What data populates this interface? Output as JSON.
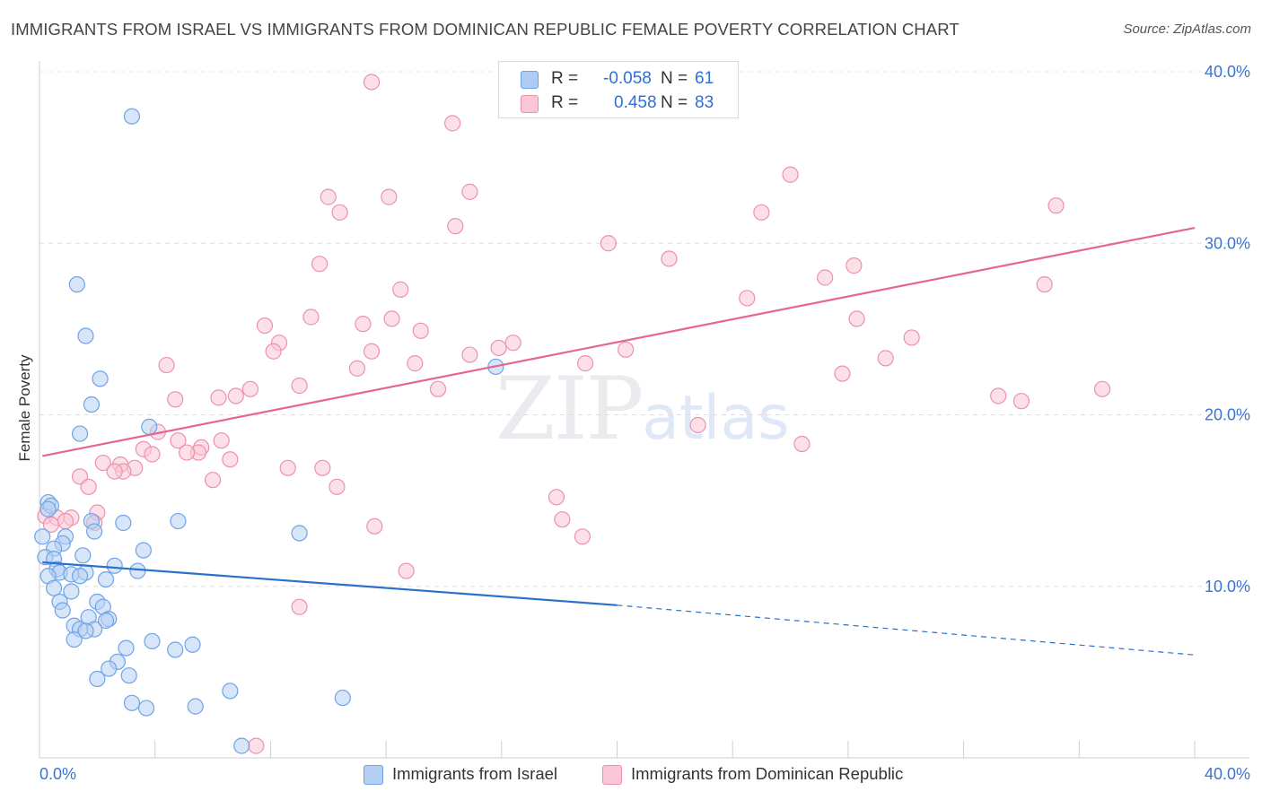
{
  "title": "IMMIGRANTS FROM ISRAEL VS IMMIGRANTS FROM DOMINICAN REPUBLIC FEMALE POVERTY CORRELATION CHART",
  "source": "Source: ZipAtlas.com",
  "watermark": {
    "zip": "ZIP",
    "atlas": "atlas"
  },
  "legend": {
    "rows": [
      {
        "r_label": "R =",
        "r_value": "-0.058",
        "n_label": "N =",
        "n_value": "61",
        "color": "#aecbf3"
      },
      {
        "r_label": "R =",
        "r_value": "0.458",
        "n_label": "N =",
        "n_value": "83",
        "color": "#f7bfd0"
      }
    ]
  },
  "bottom_legend": [
    {
      "label": "Immigrants from Israel",
      "color": "#aecbf3"
    },
    {
      "label": "Immigrants from Dominican Republic",
      "color": "#f7bfd0"
    }
  ],
  "chart_data": {
    "type": "scatter",
    "title": "IMMIGRANTS FROM ISRAEL VS IMMIGRANTS FROM DOMINICAN REPUBLIC FEMALE POVERTY CORRELATION CHART",
    "xlabel": "",
    "ylabel": "Female Poverty",
    "xlim": [
      0,
      40
    ],
    "ylim": [
      0,
      40
    ],
    "x_tick_labels": [
      "0.0%",
      "40.0%"
    ],
    "y_ticks": [
      10,
      20,
      30,
      40
    ],
    "y_tick_labels": [
      "10.0%",
      "20.0%",
      "30.0%",
      "40.0%"
    ],
    "grid": true,
    "legend_position": "top-center",
    "series": [
      {
        "name": "Immigrants from Israel",
        "color": "#6fa3e8",
        "fill": "#b4cff3",
        "line_color": "#2a70cc",
        "trend": {
          "x0": 0.1,
          "y0": 11.4,
          "x1": 20.0,
          "y1": 8.9,
          "dash_to_x": 40.0,
          "dash_to_y": 6.0
        },
        "points": [
          [
            3.2,
            37.4
          ],
          [
            1.3,
            27.6
          ],
          [
            1.6,
            24.6
          ],
          [
            2.1,
            22.1
          ],
          [
            1.8,
            20.6
          ],
          [
            1.4,
            18.9
          ],
          [
            3.8,
            19.3
          ],
          [
            15.8,
            22.8
          ],
          [
            0.3,
            14.9
          ],
          [
            0.4,
            14.7
          ],
          [
            0.3,
            14.5
          ],
          [
            1.8,
            13.8
          ],
          [
            2.9,
            13.7
          ],
          [
            4.8,
            13.8
          ],
          [
            9.0,
            13.1
          ],
          [
            1.9,
            13.2
          ],
          [
            0.1,
            12.9
          ],
          [
            0.9,
            12.9
          ],
          [
            0.8,
            12.5
          ],
          [
            0.5,
            12.2
          ],
          [
            1.5,
            11.8
          ],
          [
            3.6,
            12.1
          ],
          [
            0.2,
            11.7
          ],
          [
            0.5,
            11.6
          ],
          [
            2.6,
            11.2
          ],
          [
            0.6,
            11.0
          ],
          [
            0.7,
            10.8
          ],
          [
            1.1,
            10.7
          ],
          [
            1.6,
            10.8
          ],
          [
            3.4,
            10.9
          ],
          [
            1.4,
            10.6
          ],
          [
            0.3,
            10.6
          ],
          [
            2.3,
            10.4
          ],
          [
            0.5,
            9.9
          ],
          [
            1.1,
            9.7
          ],
          [
            0.7,
            9.1
          ],
          [
            2.0,
            9.1
          ],
          [
            2.2,
            8.8
          ],
          [
            0.8,
            8.6
          ],
          [
            1.7,
            8.2
          ],
          [
            2.4,
            8.1
          ],
          [
            2.3,
            8.0
          ],
          [
            1.2,
            7.7
          ],
          [
            1.9,
            7.5
          ],
          [
            1.4,
            7.5
          ],
          [
            1.6,
            7.4
          ],
          [
            1.2,
            6.9
          ],
          [
            3.9,
            6.8
          ],
          [
            5.3,
            6.6
          ],
          [
            3.0,
            6.4
          ],
          [
            4.7,
            6.3
          ],
          [
            2.7,
            5.6
          ],
          [
            2.4,
            5.2
          ],
          [
            3.1,
            4.8
          ],
          [
            2.0,
            4.6
          ],
          [
            6.6,
            3.9
          ],
          [
            10.5,
            3.5
          ],
          [
            3.2,
            3.2
          ],
          [
            3.7,
            2.9
          ],
          [
            5.4,
            3.0
          ],
          [
            7.0,
            0.7
          ]
        ]
      },
      {
        "name": "Immigrants from Dominican Republic",
        "color": "#ee90ad",
        "fill": "#f9c6d5",
        "line_color": "#e5668f",
        "trend": {
          "x0": 0.1,
          "y0": 17.6,
          "x1": 40.0,
          "y1": 30.9
        },
        "points": [
          [
            14.3,
            37.0
          ],
          [
            11.5,
            39.4
          ],
          [
            26.0,
            34.0
          ],
          [
            10.0,
            32.7
          ],
          [
            12.1,
            32.7
          ],
          [
            14.9,
            33.0
          ],
          [
            10.4,
            31.8
          ],
          [
            25.0,
            31.8
          ],
          [
            35.2,
            32.2
          ],
          [
            14.4,
            31.0
          ],
          [
            19.7,
            30.0
          ],
          [
            21.8,
            29.1
          ],
          [
            9.7,
            28.8
          ],
          [
            28.2,
            28.7
          ],
          [
            27.2,
            28.0
          ],
          [
            34.8,
            27.6
          ],
          [
            12.5,
            27.3
          ],
          [
            24.5,
            26.8
          ],
          [
            9.4,
            25.7
          ],
          [
            12.2,
            25.6
          ],
          [
            11.2,
            25.3
          ],
          [
            7.8,
            25.2
          ],
          [
            28.3,
            25.6
          ],
          [
            13.2,
            24.9
          ],
          [
            30.2,
            24.5
          ],
          [
            8.3,
            24.2
          ],
          [
            16.4,
            24.2
          ],
          [
            8.1,
            23.7
          ],
          [
            11.5,
            23.7
          ],
          [
            15.9,
            23.9
          ],
          [
            20.3,
            23.8
          ],
          [
            14.9,
            23.5
          ],
          [
            29.3,
            23.3
          ],
          [
            4.4,
            22.9
          ],
          [
            11.0,
            22.7
          ],
          [
            13.0,
            23.0
          ],
          [
            18.9,
            23.0
          ],
          [
            27.8,
            22.4
          ],
          [
            9.0,
            21.7
          ],
          [
            7.3,
            21.5
          ],
          [
            13.8,
            21.5
          ],
          [
            6.8,
            21.1
          ],
          [
            6.2,
            21.0
          ],
          [
            36.8,
            21.5
          ],
          [
            33.2,
            21.1
          ],
          [
            34.0,
            20.8
          ],
          [
            4.7,
            20.9
          ],
          [
            22.8,
            19.4
          ],
          [
            4.1,
            19.0
          ],
          [
            4.8,
            18.5
          ],
          [
            6.3,
            18.5
          ],
          [
            5.6,
            18.1
          ],
          [
            3.6,
            18.0
          ],
          [
            5.5,
            17.8
          ],
          [
            5.1,
            17.8
          ],
          [
            3.9,
            17.7
          ],
          [
            6.6,
            17.4
          ],
          [
            2.2,
            17.2
          ],
          [
            2.8,
            17.1
          ],
          [
            3.3,
            16.9
          ],
          [
            8.6,
            16.9
          ],
          [
            9.8,
            16.9
          ],
          [
            2.9,
            16.7
          ],
          [
            2.6,
            16.7
          ],
          [
            1.4,
            16.4
          ],
          [
            6.0,
            16.2
          ],
          [
            10.3,
            15.8
          ],
          [
            1.7,
            15.8
          ],
          [
            26.4,
            18.3
          ],
          [
            17.9,
            15.2
          ],
          [
            0.2,
            14.1
          ],
          [
            1.1,
            14.0
          ],
          [
            2.0,
            14.3
          ],
          [
            0.6,
            14.0
          ],
          [
            1.9,
            13.7
          ],
          [
            0.9,
            13.8
          ],
          [
            0.4,
            13.6
          ],
          [
            11.6,
            13.5
          ],
          [
            18.1,
            13.9
          ],
          [
            18.8,
            12.9
          ],
          [
            12.7,
            10.9
          ],
          [
            9.0,
            8.8
          ],
          [
            7.5,
            0.7
          ]
        ]
      }
    ]
  }
}
